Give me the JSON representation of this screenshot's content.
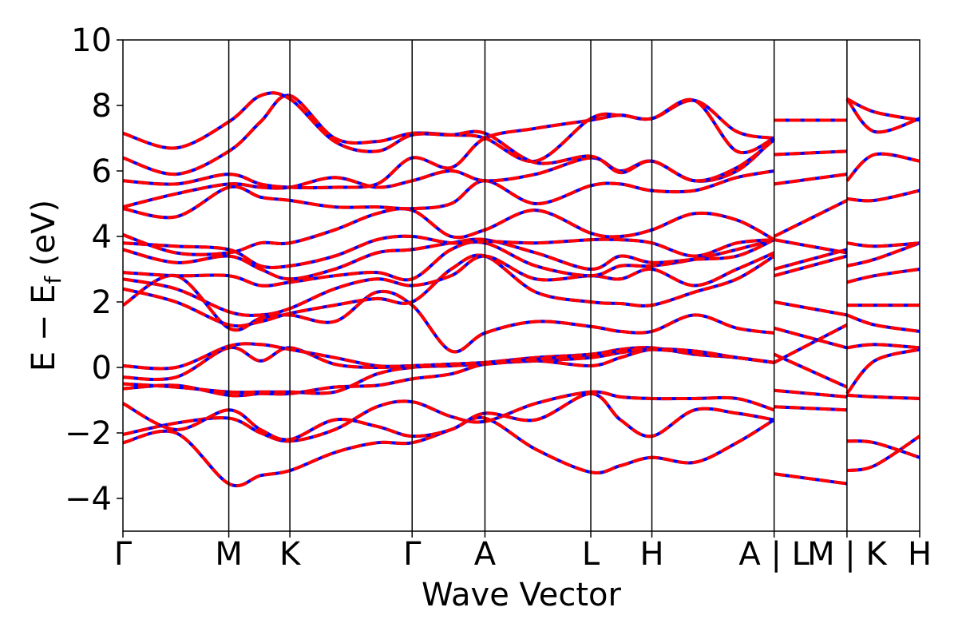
{
  "chart_data": {
    "type": "line",
    "xlabel": "Wave Vector",
    "ylabel": {
      "main": "E − E",
      "sub": "f",
      "unit": " (eV)"
    },
    "ylim": [
      -5,
      10
    ],
    "yticks": [
      {
        "value": 10,
        "label": "10"
      },
      {
        "value": 8,
        "label": "8"
      },
      {
        "value": 6,
        "label": "6"
      },
      {
        "value": 4,
        "label": "4"
      },
      {
        "value": 2,
        "label": "2"
      },
      {
        "value": 0,
        "label": "0"
      },
      {
        "value": -2,
        "label": "−2"
      },
      {
        "value": -4,
        "label": "−4"
      }
    ],
    "kpoints": [
      {
        "label": "Γ",
        "x": 0.0
      },
      {
        "label": "M",
        "x": 1.0
      },
      {
        "label": "K",
        "x": 1.577
      },
      {
        "label": "Γ",
        "x": 2.732
      },
      {
        "label": "A",
        "x": 3.42
      },
      {
        "label": "L",
        "x": 4.42
      },
      {
        "label": "H",
        "x": 4.997
      },
      {
        "label": "A | L",
        "x": 6.152
      },
      {
        "label": "M | K",
        "x": 6.84
      },
      {
        "label": "H",
        "x": 7.527
      }
    ],
    "xlim": [
      0,
      7.527
    ],
    "line_colors": {
      "band_primary": "#0000ff",
      "band_overlay": "#ff0000",
      "frame": "#000000"
    },
    "series": [
      {
        "x": [
          0,
          0.5,
          1.0,
          1.3,
          1.577,
          2.0,
          2.4,
          2.732,
          3.1,
          3.42,
          3.9,
          4.42,
          4.7,
          4.997,
          5.4,
          5.8,
          6.152
        ],
        "y": [
          -2.3,
          -2.0,
          -3.55,
          -3.3,
          -3.15,
          -2.6,
          -2.3,
          -2.3,
          -1.9,
          -1.55,
          -2.5,
          -3.2,
          -3.0,
          -2.75,
          -2.9,
          -2.3,
          -1.6
        ]
      },
      {
        "x": [
          0,
          0.5,
          1.0,
          1.3,
          1.577,
          2.0,
          2.4,
          2.732,
          3.1,
          3.42,
          3.9,
          4.42,
          4.7,
          4.997,
          5.4,
          5.8,
          6.152
        ],
        "y": [
          -2.05,
          -1.7,
          -1.55,
          -2.0,
          -2.25,
          -1.9,
          -1.2,
          -1.05,
          -1.5,
          -1.65,
          -1.1,
          -0.75,
          -0.9,
          -0.95,
          -0.95,
          -0.95,
          -1.3
        ]
      },
      {
        "x": [
          0,
          0.5,
          1.0,
          1.3,
          1.577,
          2.0,
          2.4,
          2.732,
          3.1,
          3.42,
          3.9,
          4.42,
          4.7,
          4.997,
          5.4,
          5.8,
          6.152
        ],
        "y": [
          -1.1,
          -1.9,
          -1.3,
          -1.9,
          -2.2,
          -1.6,
          -1.8,
          -2.1,
          -1.9,
          -1.4,
          -1.6,
          -0.8,
          -1.6,
          -2.1,
          -1.3,
          -1.4,
          -1.6
        ]
      },
      {
        "x": [
          0,
          0.5,
          1.0,
          1.3,
          1.577,
          2.0,
          2.4,
          2.732,
          3.1,
          3.42,
          3.9,
          4.42,
          4.7,
          4.997,
          5.4,
          5.8,
          6.152
        ],
        "y": [
          -0.65,
          -0.55,
          -0.85,
          -0.8,
          -0.8,
          -0.6,
          -0.55,
          -0.35,
          -0.2,
          0.1,
          0.2,
          0.3,
          0.45,
          0.55,
          0.45,
          0.3,
          0.15
        ]
      },
      {
        "x": [
          0,
          0.5,
          1.0,
          1.3,
          1.577,
          2.0,
          2.4,
          2.732,
          3.1,
          3.42,
          3.9,
          4.42,
          4.7,
          4.997,
          5.4,
          5.8,
          6.152
        ],
        "y": [
          -0.5,
          -0.6,
          -0.75,
          -0.75,
          -0.75,
          -0.75,
          -0.2,
          0.0,
          0.05,
          0.1,
          0.2,
          0.05,
          0.3,
          0.55,
          0.5,
          0.3,
          0.15
        ]
      },
      {
        "x": [
          0,
          0.5,
          1.0,
          1.3,
          1.577,
          2.0,
          2.4,
          2.732,
          3.1,
          3.42,
          3.9,
          4.42,
          4.7,
          4.997,
          5.4,
          5.8,
          6.152
        ],
        "y": [
          -0.3,
          -0.3,
          0.6,
          0.2,
          0.6,
          0.1,
          0.0,
          0.05,
          0.1,
          0.15,
          0.3,
          0.4,
          0.55,
          0.6,
          0.4,
          0.3,
          0.15
        ]
      },
      {
        "x": [
          0,
          0.5,
          1.0,
          1.3,
          1.577,
          2.0,
          2.4,
          2.732,
          3.1,
          3.42,
          3.9,
          4.42,
          4.7,
          4.997,
          5.4,
          5.8,
          6.152
        ],
        "y": [
          0.05,
          0.0,
          0.65,
          0.7,
          0.55,
          0.3,
          0.05,
          0.05,
          0.1,
          0.15,
          0.25,
          0.4,
          0.5,
          0.55,
          0.45,
          0.3,
          0.15
        ]
      },
      {
        "x": [
          0,
          0.5,
          1.0,
          1.3,
          1.577,
          2.0,
          2.4,
          2.732,
          3.1,
          3.42,
          3.9,
          4.42,
          4.7,
          4.997,
          5.4,
          5.8,
          6.152
        ],
        "y": [
          1.9,
          2.8,
          1.2,
          1.5,
          1.6,
          1.4,
          2.3,
          1.9,
          0.5,
          1.05,
          1.4,
          1.25,
          1.1,
          1.1,
          1.6,
          1.2,
          1.05
        ]
      },
      {
        "x": [
          0,
          0.5,
          1.0,
          1.3,
          1.577,
          2.0,
          2.4,
          2.732,
          3.1,
          3.42,
          3.9,
          4.42,
          4.7,
          4.997,
          5.4,
          5.8,
          6.152
        ],
        "y": [
          2.4,
          2.0,
          1.3,
          1.4,
          1.65,
          1.9,
          2.1,
          2.0,
          3.0,
          3.4,
          2.3,
          2.0,
          1.95,
          1.9,
          2.3,
          2.7,
          3.4
        ]
      },
      {
        "x": [
          0,
          0.5,
          1.0,
          1.3,
          1.577,
          2.0,
          2.4,
          2.732,
          3.1,
          3.42,
          3.9,
          4.42,
          4.7,
          4.997,
          5.4,
          5.8,
          6.152
        ],
        "y": [
          2.7,
          2.4,
          1.7,
          1.6,
          1.8,
          2.4,
          2.7,
          2.5,
          2.8,
          3.4,
          2.7,
          2.8,
          2.7,
          3.0,
          2.5,
          3.0,
          3.5
        ]
      },
      {
        "x": [
          0,
          0.5,
          1.0,
          1.3,
          1.577,
          2.0,
          2.4,
          2.732,
          3.1,
          3.42,
          3.9,
          4.42,
          4.7,
          4.997,
          5.4,
          5.8,
          6.152
        ],
        "y": [
          2.9,
          2.8,
          2.8,
          2.5,
          2.6,
          2.8,
          2.9,
          2.7,
          3.6,
          3.8,
          3.1,
          2.8,
          3.1,
          3.1,
          3.3,
          3.6,
          3.9
        ]
      },
      {
        "x": [
          0,
          0.5,
          1.0,
          1.3,
          1.577,
          2.0,
          2.4,
          2.732,
          3.1,
          3.42,
          3.9,
          4.42,
          4.7,
          4.997,
          5.4,
          5.8,
          6.152
        ],
        "y": [
          3.6,
          3.2,
          3.4,
          3.0,
          2.7,
          3.0,
          3.5,
          3.6,
          3.8,
          3.9,
          3.5,
          3.0,
          3.4,
          3.2,
          3.3,
          3.4,
          3.9
        ]
      },
      {
        "x": [
          0,
          0.5,
          1.0,
          1.3,
          1.577,
          2.0,
          2.4,
          2.732,
          3.1,
          3.42,
          3.9,
          4.42,
          4.7,
          4.997,
          5.4,
          5.8,
          6.152
        ],
        "y": [
          3.8,
          3.7,
          3.6,
          3.1,
          3.1,
          3.4,
          3.9,
          4.0,
          3.8,
          3.85,
          3.8,
          3.9,
          3.9,
          3.8,
          3.4,
          3.8,
          3.9
        ]
      },
      {
        "x": [
          0,
          0.5,
          1.0,
          1.3,
          1.577,
          2.0,
          2.4,
          2.732,
          3.1,
          3.42,
          3.9,
          4.42,
          4.7,
          4.997,
          5.4,
          5.8,
          6.152
        ],
        "y": [
          4.05,
          3.5,
          3.5,
          3.8,
          3.8,
          4.2,
          4.7,
          4.8,
          4.0,
          4.2,
          4.8,
          4.1,
          4.0,
          4.2,
          4.7,
          4.5,
          3.9
        ]
      },
      {
        "x": [
          0,
          0.5,
          1.0,
          1.3,
          1.577,
          2.0,
          2.4,
          2.732,
          3.1,
          3.42,
          3.9,
          4.42,
          4.7,
          4.997,
          5.4,
          5.8,
          6.152
        ],
        "y": [
          4.85,
          4.6,
          5.5,
          5.2,
          5.1,
          4.9,
          4.9,
          4.85,
          5.0,
          5.7,
          5.0,
          5.55,
          5.6,
          5.4,
          5.4,
          5.8,
          6.0
        ]
      },
      {
        "x": [
          0,
          0.5,
          1.0,
          1.3,
          1.577,
          2.0,
          2.4,
          2.732,
          3.1,
          3.42,
          3.9,
          4.42,
          4.7,
          4.997,
          5.4,
          5.8,
          6.152
        ],
        "y": [
          4.9,
          5.3,
          5.6,
          5.5,
          5.5,
          5.8,
          5.5,
          5.7,
          6.0,
          5.7,
          5.9,
          6.4,
          6.0,
          6.3,
          5.7,
          6.0,
          7.0
        ]
      },
      {
        "x": [
          0,
          0.5,
          1.0,
          1.3,
          1.577,
          2.0,
          2.4,
          2.732,
          3.1,
          3.42,
          3.9,
          4.42,
          4.7,
          4.997,
          5.4,
          5.8,
          6.152
        ],
        "y": [
          5.7,
          5.6,
          5.9,
          5.6,
          5.5,
          5.5,
          5.6,
          6.4,
          6.1,
          7.0,
          7.3,
          7.55,
          7.7,
          7.6,
          8.15,
          7.2,
          7.0
        ]
      },
      {
        "x": [
          0,
          0.5,
          1.0,
          1.3,
          1.577,
          2.0,
          2.4,
          2.732,
          3.1,
          3.42,
          3.9,
          4.42,
          4.7,
          4.997,
          5.4,
          5.8,
          6.152
        ],
        "y": [
          6.4,
          5.9,
          6.6,
          7.5,
          8.3,
          7.0,
          6.9,
          7.15,
          7.1,
          7.0,
          6.3,
          7.6,
          7.7,
          7.6,
          8.15,
          6.6,
          7.0
        ]
      },
      {
        "x": [
          0,
          0.5,
          1.0,
          1.3,
          1.577,
          2.0,
          2.4,
          2.732,
          3.1,
          3.42,
          3.9,
          4.42,
          4.7,
          4.997,
          5.4,
          5.8,
          6.152
        ],
        "y": [
          7.15,
          6.7,
          7.5,
          8.3,
          8.2,
          6.9,
          6.6,
          7.1,
          7.1,
          7.15,
          6.25,
          6.45,
          5.95,
          6.3,
          5.7,
          6.1,
          6.95
        ]
      },
      {
        "x": [
          6.152,
          6.84
        ],
        "y": [
          -3.25,
          -3.55
        ]
      },
      {
        "x": [
          6.152,
          6.84
        ],
        "y": [
          -1.2,
          -1.3
        ]
      },
      {
        "x": [
          6.152,
          6.84
        ],
        "y": [
          -0.7,
          -0.9
        ]
      },
      {
        "x": [
          6.152,
          6.84
        ],
        "y": [
          0.15,
          1.3
        ]
      },
      {
        "x": [
          6.152,
          6.84
        ],
        "y": [
          0.4,
          -0.6
        ]
      },
      {
        "x": [
          6.152,
          6.84
        ],
        "y": [
          1.2,
          0.6
        ]
      },
      {
        "x": [
          6.152,
          6.84
        ],
        "y": [
          2.0,
          1.6
        ]
      },
      {
        "x": [
          6.152,
          6.84
        ],
        "y": [
          2.8,
          3.4
        ]
      },
      {
        "x": [
          6.152,
          6.84
        ],
        "y": [
          3.0,
          3.6
        ]
      },
      {
        "x": [
          6.152,
          6.84
        ],
        "y": [
          3.9,
          3.5
        ]
      },
      {
        "x": [
          6.152,
          6.84
        ],
        "y": [
          4.0,
          5.1
        ]
      },
      {
        "x": [
          6.152,
          6.84
        ],
        "y": [
          5.6,
          5.9
        ]
      },
      {
        "x": [
          6.152,
          6.84
        ],
        "y": [
          6.5,
          6.6
        ]
      },
      {
        "x": [
          6.152,
          6.84
        ],
        "y": [
          7.55,
          7.55
        ]
      },
      {
        "x": [
          6.84,
          7.1,
          7.527
        ],
        "y": [
          -3.15,
          -3.0,
          -2.1
        ]
      },
      {
        "x": [
          6.84,
          7.1,
          7.527
        ],
        "y": [
          -2.25,
          -2.3,
          -2.75
        ]
      },
      {
        "x": [
          6.84,
          7.1,
          7.527
        ],
        "y": [
          -0.85,
          -0.9,
          -0.95
        ]
      },
      {
        "x": [
          6.84,
          7.1,
          7.527
        ],
        "y": [
          -0.8,
          0.2,
          0.55
        ]
      },
      {
        "x": [
          6.84,
          7.1,
          7.527
        ],
        "y": [
          0.6,
          0.7,
          0.6
        ]
      },
      {
        "x": [
          6.84,
          7.1,
          7.527
        ],
        "y": [
          1.6,
          1.3,
          1.1
        ]
      },
      {
        "x": [
          6.84,
          7.1,
          7.527
        ],
        "y": [
          1.9,
          1.9,
          1.9
        ]
      },
      {
        "x": [
          6.84,
          7.1,
          7.527
        ],
        "y": [
          2.6,
          2.8,
          3.0
        ]
      },
      {
        "x": [
          6.84,
          7.1,
          7.527
        ],
        "y": [
          3.1,
          3.3,
          3.8
        ]
      },
      {
        "x": [
          6.84,
          7.1,
          7.527
        ],
        "y": [
          3.8,
          3.7,
          3.8
        ]
      },
      {
        "x": [
          6.84,
          7.1,
          7.527
        ],
        "y": [
          5.15,
          5.1,
          5.4
        ]
      },
      {
        "x": [
          6.84,
          7.1,
          7.527
        ],
        "y": [
          5.7,
          6.5,
          6.3
        ]
      },
      {
        "x": [
          6.84,
          7.1,
          7.527
        ],
        "y": [
          8.2,
          7.2,
          7.6
        ]
      },
      {
        "x": [
          6.84,
          7.1,
          7.527
        ],
        "y": [
          8.2,
          7.8,
          7.55
        ]
      }
    ]
  }
}
